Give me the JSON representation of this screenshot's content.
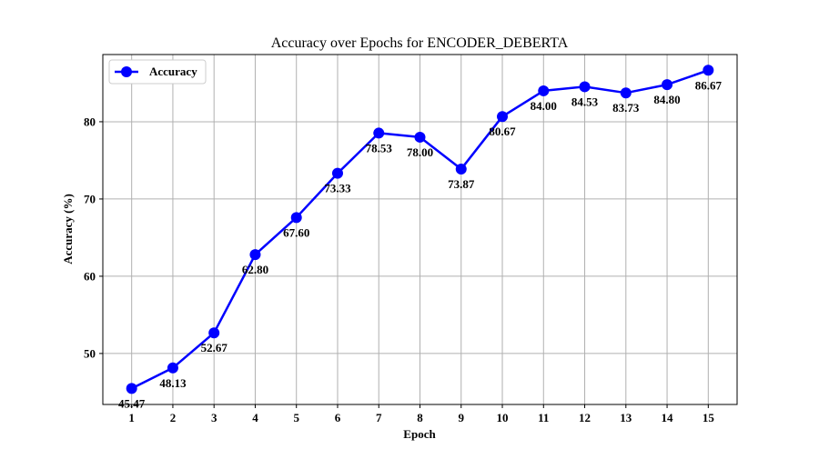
{
  "chart_data": {
    "type": "line",
    "title": "Accuracy over Epochs for ENCODER_DEBERTA",
    "xlabel": "Epoch",
    "ylabel": "Accuracy (%)",
    "x": [
      1,
      2,
      3,
      4,
      5,
      6,
      7,
      8,
      9,
      10,
      11,
      12,
      13,
      14,
      15
    ],
    "xlim": [
      0.3,
      15.7
    ],
    "ylim": [
      43.4,
      88.7
    ],
    "yticks": [
      50,
      60,
      70,
      80
    ],
    "grid": true,
    "legend_position": "top-left",
    "series": [
      {
        "name": "Accuracy",
        "color": "#0000ff",
        "marker": "circle",
        "values": [
          45.47,
          48.13,
          52.67,
          62.8,
          67.6,
          73.33,
          78.53,
          78.0,
          73.87,
          80.67,
          84.0,
          84.53,
          83.73,
          84.8,
          86.67
        ],
        "labels": [
          "45.47",
          "48.13",
          "52.67",
          "62.80",
          "67.60",
          "73.33",
          "78.53",
          "78.00",
          "73.87",
          "80.67",
          "84.00",
          "84.53",
          "83.73",
          "84.80",
          "86.67"
        ]
      }
    ]
  }
}
